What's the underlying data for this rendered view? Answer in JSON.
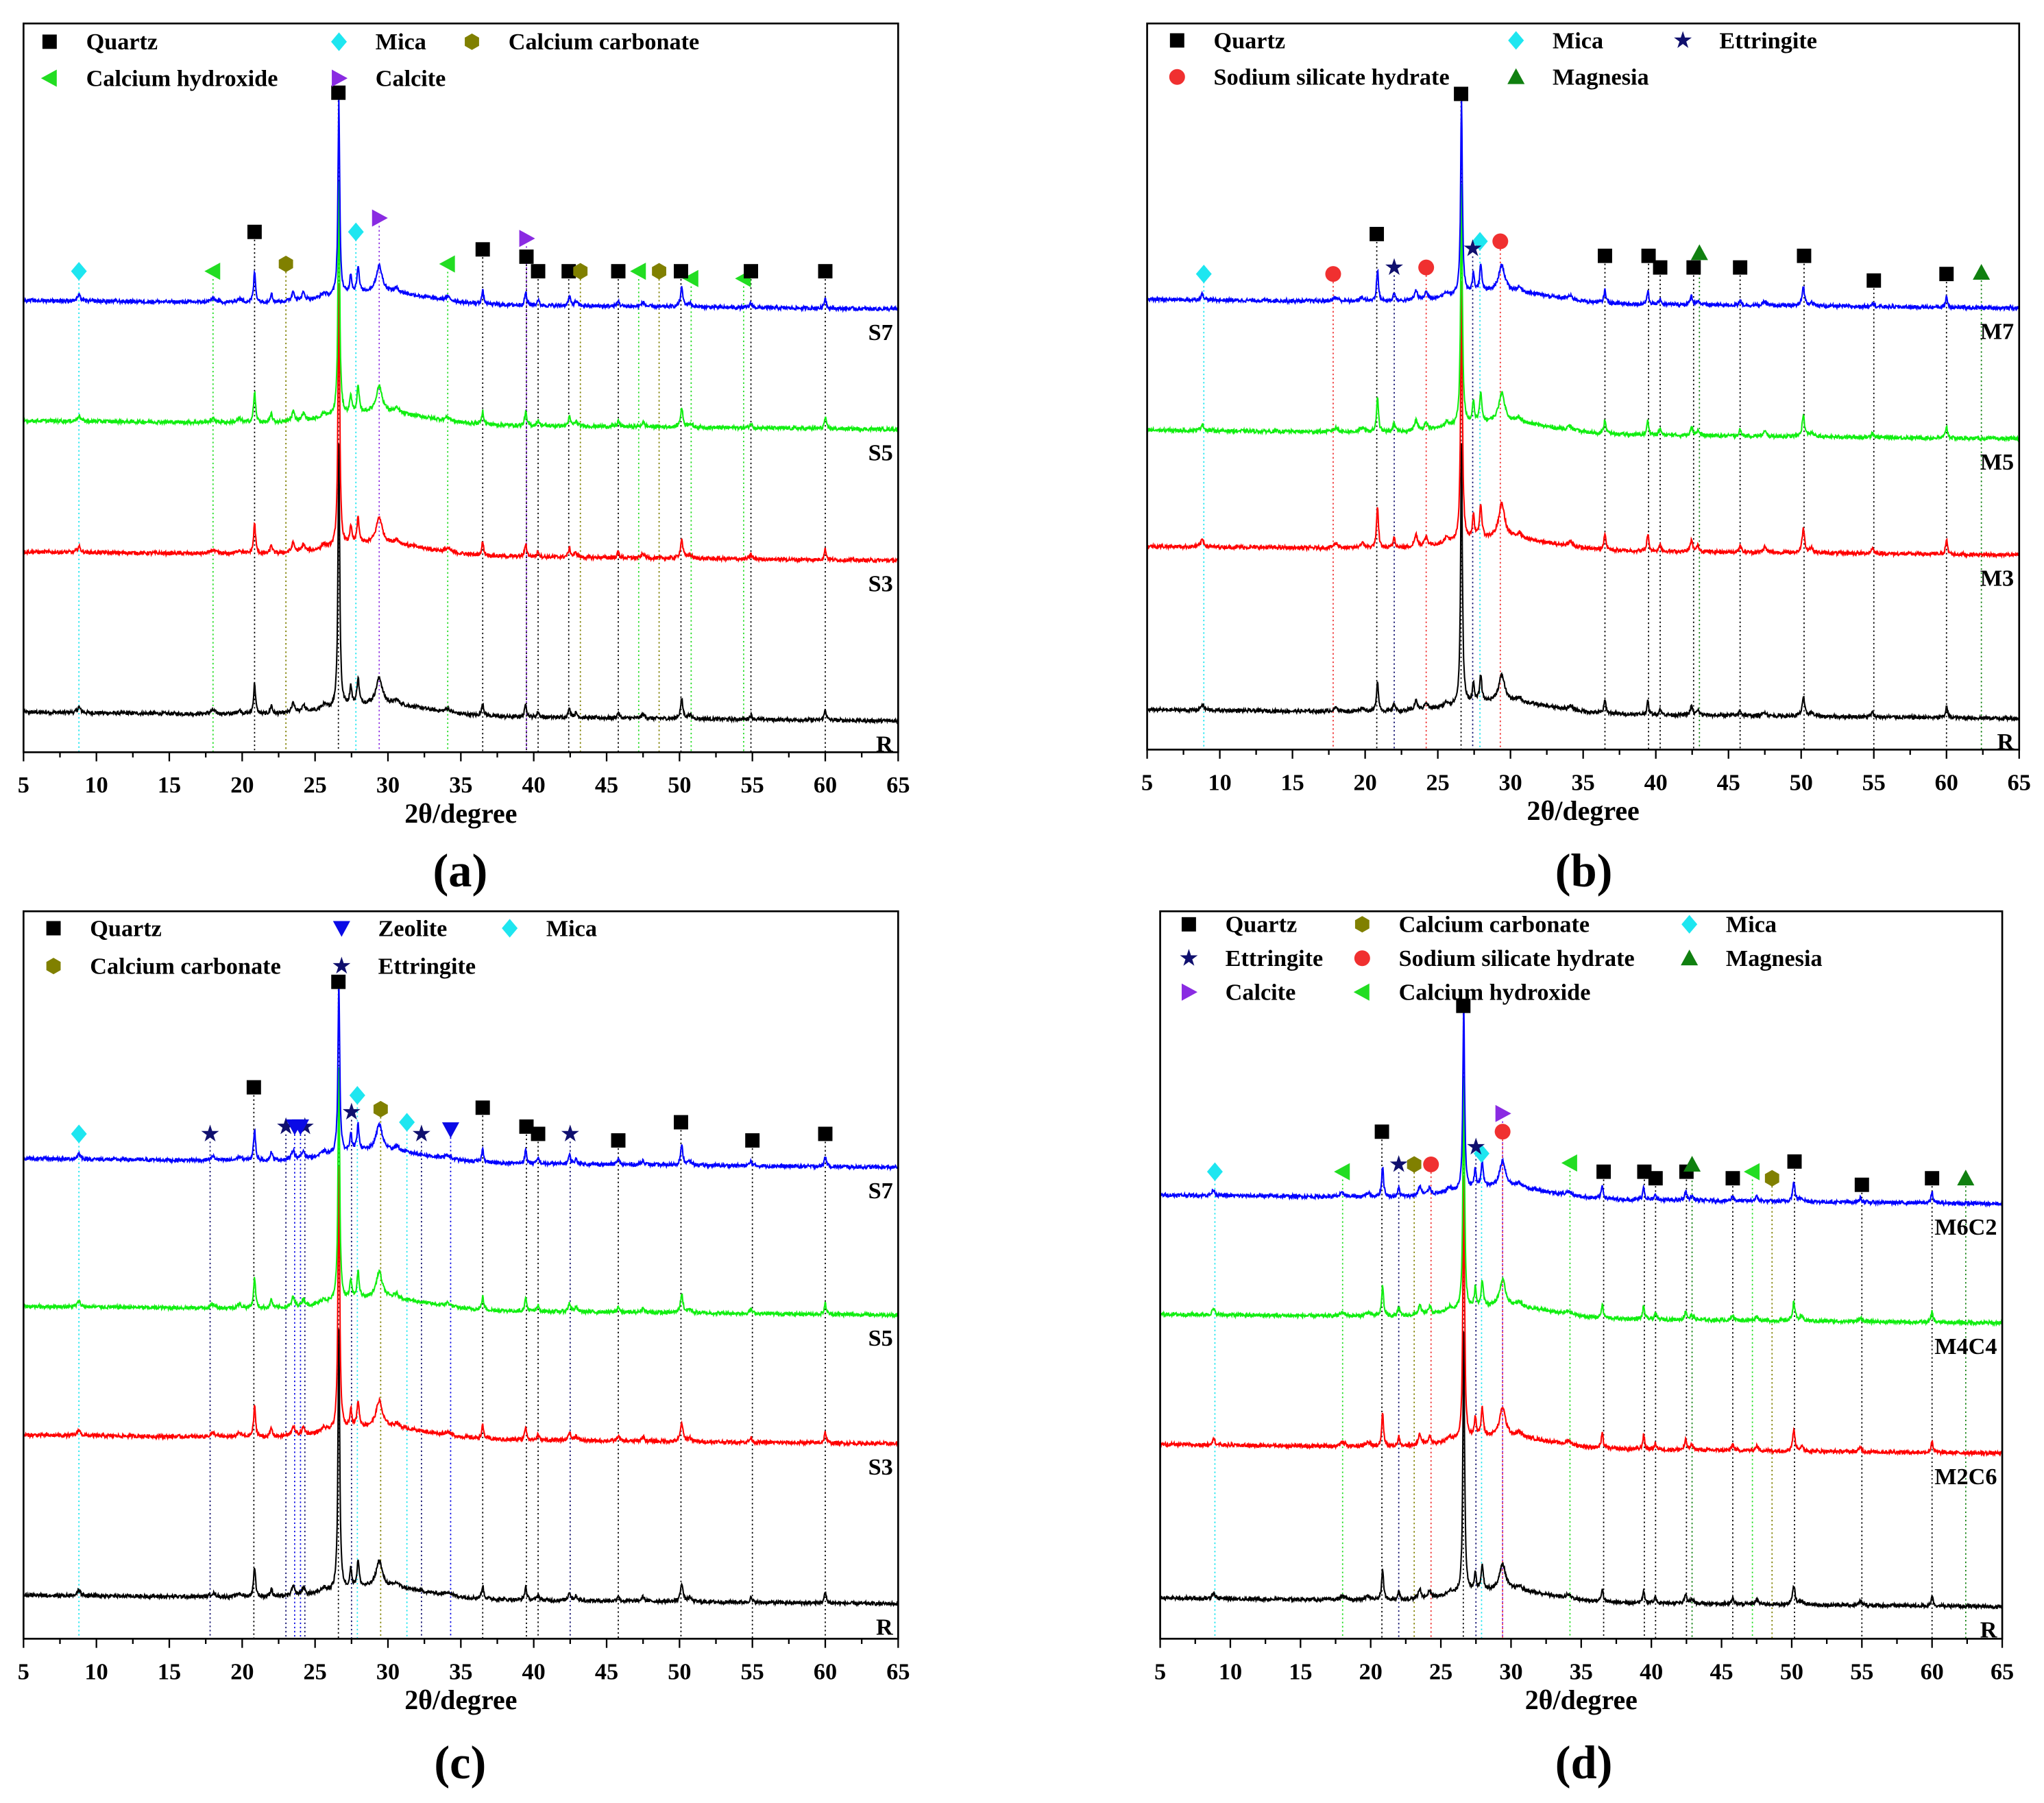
{
  "phases": {
    "quartz": {
      "name": "Quartz",
      "shape": "square",
      "color": "#000000"
    },
    "mica": {
      "name": "Mica",
      "shape": "diamond",
      "color": "#1ee6f0"
    },
    "caco3": {
      "name": "Calcium carbonate",
      "shape": "hexagon",
      "color": "#808000"
    },
    "ch": {
      "name": "Calcium hydroxide",
      "shape": "triangle-left",
      "color": "#22dd22"
    },
    "calcite": {
      "name": "Calcite",
      "shape": "triangle-right",
      "color": "#8a2be2"
    },
    "ettringite": {
      "name": "Ettringite",
      "shape": "star",
      "color": "#10106e"
    },
    "ssh": {
      "name": "Sodium silicate hydrate",
      "shape": "circle",
      "color": "#f03030"
    },
    "magnesia": {
      "name": "Magnesia",
      "shape": "triangle-up",
      "color": "#108010"
    },
    "zeolite": {
      "name": "Zeolite",
      "shape": "triangle-down",
      "color": "#0a0ae6"
    }
  },
  "chart_data": [
    {
      "id": "a",
      "type": "line",
      "panel_label": "(a)",
      "xlabel": "2θ/degree",
      "ylabel": "",
      "xlim": [
        5,
        65
      ],
      "ylim": [
        0,
        100
      ],
      "xticks": [
        5,
        10,
        15,
        20,
        25,
        30,
        35,
        40,
        45,
        50,
        55,
        60,
        65
      ],
      "legend": [
        [
          "quartz",
          "mica",
          "caco3"
        ],
        [
          "ch",
          "calcite"
        ]
      ],
      "series": [
        {
          "name": "R",
          "color": "#000000",
          "offset": 5.5,
          "main": 36,
          "scale": 1.0
        },
        {
          "name": "S3",
          "color": "#ff0000",
          "offset": 27.5,
          "main": 36,
          "scale": 1.0
        },
        {
          "name": "S5",
          "color": "#11ee11",
          "offset": 45.5,
          "main": 32,
          "scale": 1.0
        },
        {
          "name": "S7",
          "color": "#0000ff",
          "offset": 62,
          "main": 27,
          "scale": 1.0
        }
      ],
      "markers": [
        [
          "mica",
          8.8,
          66
        ],
        [
          "mica",
          27.8,
          71.4
        ],
        [
          "ch",
          18,
          66
        ],
        [
          "ch",
          34.1,
          67
        ],
        [
          "ch",
          47.2,
          66
        ],
        [
          "ch",
          50.8,
          65
        ],
        [
          "ch",
          54.4,
          65
        ],
        [
          "quartz",
          20.85,
          71.4
        ],
        [
          "quartz",
          26.6,
          90.5
        ],
        [
          "quartz",
          36.5,
          69
        ],
        [
          "quartz",
          39.5,
          68
        ],
        [
          "quartz",
          40.3,
          66
        ],
        [
          "quartz",
          42.4,
          66
        ],
        [
          "quartz",
          45.8,
          66
        ],
        [
          "quartz",
          50.1,
          66
        ],
        [
          "quartz",
          54.9,
          66
        ],
        [
          "quartz",
          60,
          66
        ],
        [
          "caco3",
          23,
          67
        ],
        [
          "caco3",
          43.2,
          66
        ],
        [
          "caco3",
          48.6,
          66
        ],
        [
          "calcite",
          29.4,
          73.3
        ],
        [
          "calcite",
          39.5,
          70.5
        ]
      ]
    },
    {
      "id": "b",
      "type": "line",
      "panel_label": "(b)",
      "xlabel": "2θ/degree",
      "ylabel": "",
      "xlim": [
        5,
        65
      ],
      "ylim": [
        0,
        100
      ],
      "xticks": [
        5,
        10,
        15,
        20,
        25,
        30,
        35,
        40,
        45,
        50,
        55,
        60,
        65
      ],
      "legend": [
        [
          "quartz",
          "mica",
          "ettringite"
        ],
        [
          "ssh",
          "magnesia"
        ]
      ],
      "series": [
        {
          "name": "R",
          "color": "#000000",
          "offset": 5.5,
          "main": 36,
          "scale": 1.0
        },
        {
          "name": "M3",
          "color": "#ff0000",
          "offset": 28,
          "main": 36,
          "scale": 1.3
        },
        {
          "name": "M5",
          "color": "#11ee11",
          "offset": 44,
          "main": 33,
          "scale": 1.1
        },
        {
          "name": "M7",
          "color": "#0000ff",
          "offset": 62,
          "main": 27,
          "scale": 1.0
        }
      ],
      "markers": [
        [
          "mica",
          8.9,
          65.5
        ],
        [
          "mica",
          27.9,
          70
        ],
        [
          "ssh",
          17.8,
          65.5
        ],
        [
          "ssh",
          24.2,
          66.4
        ],
        [
          "ssh",
          29.3,
          70
        ],
        [
          "quartz",
          20.8,
          71
        ],
        [
          "quartz",
          26.6,
          90.3
        ],
        [
          "quartz",
          36.5,
          68
        ],
        [
          "quartz",
          39.5,
          68
        ],
        [
          "quartz",
          40.3,
          66.4
        ],
        [
          "quartz",
          42.6,
          66.4
        ],
        [
          "quartz",
          45.8,
          66.4
        ],
        [
          "quartz",
          50.2,
          68
        ],
        [
          "quartz",
          55,
          64.6
        ],
        [
          "quartz",
          60,
          65.5
        ],
        [
          "ettringite",
          22,
          66.4
        ],
        [
          "ettringite",
          27.4,
          69
        ],
        [
          "magnesia",
          43,
          68.4
        ],
        [
          "magnesia",
          62.4,
          65.7
        ]
      ]
    },
    {
      "id": "c",
      "type": "line",
      "panel_label": "(c)",
      "xlabel": "2θ/degree",
      "ylabel": "",
      "xlim": [
        5,
        65
      ],
      "ylim": [
        0,
        100
      ],
      "xticks": [
        5,
        10,
        15,
        20,
        25,
        30,
        35,
        40,
        45,
        50,
        55,
        60,
        65
      ],
      "legend": [
        [
          "quartz",
          "zeolite",
          "mica"
        ],
        [
          "caco3",
          "ettringite"
        ]
      ],
      "series": [
        {
          "name": "R",
          "color": "#000000",
          "offset": 6,
          "main": 36,
          "scale": 1.0
        },
        {
          "name": "S3",
          "color": "#ff0000",
          "offset": 28,
          "main": 36,
          "scale": 1.0
        },
        {
          "name": "S5",
          "color": "#11ee11",
          "offset": 45.7,
          "main": 32,
          "scale": 1.0
        },
        {
          "name": "S7",
          "color": "#0000ff",
          "offset": 66,
          "main": 24,
          "scale": 1.0
        }
      ],
      "markers": [
        [
          "mica",
          8.8,
          69.4
        ],
        [
          "mica",
          27.9,
          74.7
        ],
        [
          "mica",
          31.3,
          71
        ],
        [
          "ettringite",
          17.8,
          69.4
        ],
        [
          "ettringite",
          23,
          70.4
        ],
        [
          "ettringite",
          24.3,
          70.4
        ],
        [
          "ettringite",
          27.5,
          72.4
        ],
        [
          "ettringite",
          32.3,
          69.4
        ],
        [
          "ettringite",
          42.5,
          69.4
        ],
        [
          "zeolite",
          23.6,
          70.4
        ],
        [
          "zeolite",
          24,
          70.4
        ],
        [
          "zeolite",
          34.3,
          70
        ],
        [
          "quartz",
          20.8,
          75.8
        ],
        [
          "quartz",
          26.6,
          90.3
        ],
        [
          "quartz",
          36.5,
          73
        ],
        [
          "quartz",
          39.5,
          70.4
        ],
        [
          "quartz",
          40.3,
          69.4
        ],
        [
          "quartz",
          45.8,
          68.5
        ],
        [
          "quartz",
          50.1,
          71
        ],
        [
          "quartz",
          55,
          68.5
        ],
        [
          "quartz",
          60,
          69.4
        ],
        [
          "caco3",
          29.5,
          72.8
        ]
      ]
    },
    {
      "id": "d",
      "type": "line",
      "panel_label": "(d)",
      "xlabel": "2θ/degree",
      "ylabel": "",
      "xlim": [
        5,
        65
      ],
      "ylim": [
        0,
        100
      ],
      "xticks": [
        5,
        10,
        15,
        20,
        25,
        30,
        35,
        40,
        45,
        50,
        55,
        60,
        65
      ],
      "legend": [
        [
          "quartz",
          "caco3",
          "mica"
        ],
        [
          "ettringite",
          "ssh",
          "magnesia"
        ],
        [
          "calcite",
          "ch"
        ]
      ],
      "series": [
        {
          "name": "R",
          "color": "#000000",
          "offset": 5.6,
          "main": 36,
          "scale": 1.0
        },
        {
          "name": "M2C6",
          "color": "#ff0000",
          "offset": 26.7,
          "main": 36,
          "scale": 1.1
        },
        {
          "name": "M4C4",
          "color": "#11ee11",
          "offset": 44.6,
          "main": 32,
          "scale": 1.0
        },
        {
          "name": "M6C2",
          "color": "#0000ff",
          "offset": 61,
          "main": 26,
          "scale": 1.0
        }
      ],
      "markers": [
        [
          "mica",
          8.9,
          64.2
        ],
        [
          "mica",
          27.9,
          66.7
        ],
        [
          "ch",
          18,
          64.2
        ],
        [
          "ch",
          34.2,
          65.4
        ],
        [
          "ch",
          47.2,
          64.2
        ],
        [
          "quartz",
          20.8,
          69.7
        ],
        [
          "quartz",
          26.6,
          87
        ],
        [
          "quartz",
          36.6,
          64.2
        ],
        [
          "quartz",
          39.5,
          64.2
        ],
        [
          "quartz",
          40.3,
          63.3
        ],
        [
          "quartz",
          42.5,
          64.2
        ],
        [
          "quartz",
          45.8,
          63.3
        ],
        [
          "quartz",
          50.2,
          65.6
        ],
        [
          "quartz",
          55,
          62.4
        ],
        [
          "quartz",
          60,
          63.3
        ],
        [
          "ettringite",
          22,
          65.2
        ],
        [
          "ettringite",
          27.5,
          67.6
        ],
        [
          "caco3",
          23.1,
          65.2
        ],
        [
          "caco3",
          48.6,
          63.3
        ],
        [
          "ssh",
          24.3,
          65.2
        ],
        [
          "ssh",
          29.4,
          69.7
        ],
        [
          "calcite",
          29.4,
          72.2
        ],
        [
          "magnesia",
          42.9,
          65.2
        ],
        [
          "magnesia",
          62.4,
          63.3
        ]
      ]
    }
  ],
  "peaks": [
    [
      8.8,
      0.8,
      0.12
    ],
    [
      18,
      0.5,
      0.2
    ],
    [
      19.8,
      0.5,
      0.2
    ],
    [
      20.85,
      4.2,
      0.08
    ],
    [
      22,
      1.2,
      0.08
    ],
    [
      23.5,
      1.3,
      0.12
    ],
    [
      24.2,
      1.0,
      0.12
    ],
    [
      25.6,
      0.6,
      0.2
    ],
    [
      27.45,
      2.6,
      0.08
    ],
    [
      27.95,
      3.6,
      0.09
    ],
    [
      29.4,
      3.6,
      0.25
    ],
    [
      30.6,
      0.6,
      0.2
    ],
    [
      34.1,
      0.5,
      0.2
    ],
    [
      36.5,
      1.8,
      0.08
    ],
    [
      39.45,
      1.8,
      0.08
    ],
    [
      40.3,
      0.8,
      0.08
    ],
    [
      42.45,
      1.2,
      0.09
    ],
    [
      42.9,
      0.6,
      0.12
    ],
    [
      45.8,
      0.8,
      0.08
    ],
    [
      47.5,
      0.6,
      0.12
    ],
    [
      50.15,
      2.6,
      0.1
    ],
    [
      50.7,
      0.5,
      0.15
    ],
    [
      54.9,
      0.6,
      0.1
    ],
    [
      60,
      1.5,
      0.08
    ]
  ]
}
